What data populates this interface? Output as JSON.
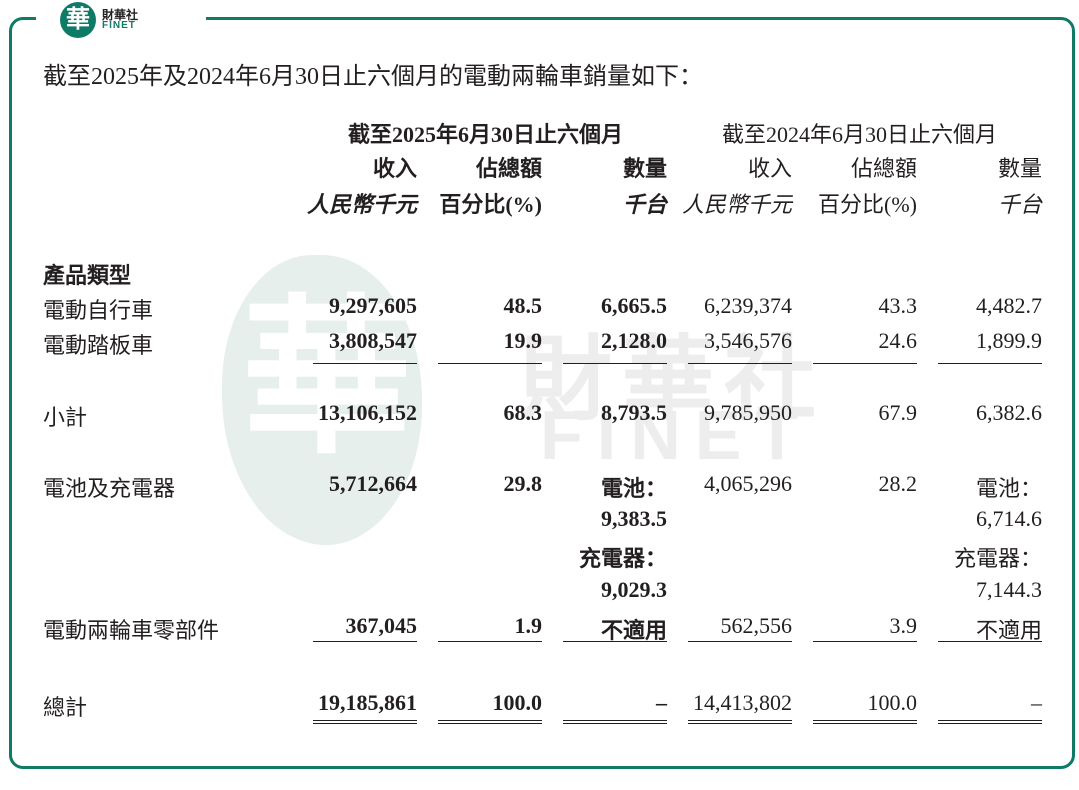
{
  "brand": {
    "logo_char": "華",
    "name_cn": "財華社",
    "name_en": "FINET",
    "watermark_cn": "財華社",
    "watermark_en": "FINET",
    "accent_color": "#0f7a66"
  },
  "heading": "截至2025年及2024年6月30日止六個月的電動兩輪車銷量如下：",
  "periods": [
    "截至2025年6月30日止六個月",
    "截至2024年6月30日止六個月"
  ],
  "columns": {
    "revenue": "收入",
    "share": "佔總額",
    "volume": "數量",
    "revenue_unit": "人民幣千元",
    "share_unit": "百分比(%)",
    "volume_unit": "千台"
  },
  "section_label": "產品類型",
  "rows": [
    {
      "label": "電動自行車",
      "rev25": "9,297,605",
      "pct25": "48.5",
      "vol25": "6,665.5",
      "rev24": "6,239,374",
      "pct24": "43.3",
      "vol24": "4,482.7"
    },
    {
      "label": "電動踏板車",
      "rev25": "3,808,547",
      "pct25": "19.9",
      "vol25": "2,128.0",
      "rev24": "3,546,576",
      "pct24": "24.6",
      "vol24": "1,899.9"
    },
    {
      "label": "小計",
      "rev25": "13,106,152",
      "pct25": "68.3",
      "vol25": "8,793.5",
      "rev24": "9,785,950",
      "pct24": "67.9",
      "vol24": "6,382.6"
    },
    {
      "label": "電池及充電器",
      "rev25": "5,712,664",
      "pct25": "29.8",
      "vol25a": "電池：",
      "vol25b": "9,383.5",
      "vol25c": "充電器：",
      "vol25d": "9,029.3",
      "rev24": "4,065,296",
      "pct24": "28.2",
      "vol24a": "電池：",
      "vol24b": "6,714.6",
      "vol24c": "充電器：",
      "vol24d": "7,144.3"
    },
    {
      "label": "電動兩輪車零部件",
      "rev25": "367,045",
      "pct25": "1.9",
      "vol25": "不適用",
      "rev24": "562,556",
      "pct24": "3.9",
      "vol24": "不適用"
    },
    {
      "label": "總計",
      "rev25": "19,185,861",
      "pct25": "100.0",
      "vol25": "–",
      "rev24": "14,413,802",
      "pct24": "100.0",
      "vol24": "–"
    }
  ]
}
